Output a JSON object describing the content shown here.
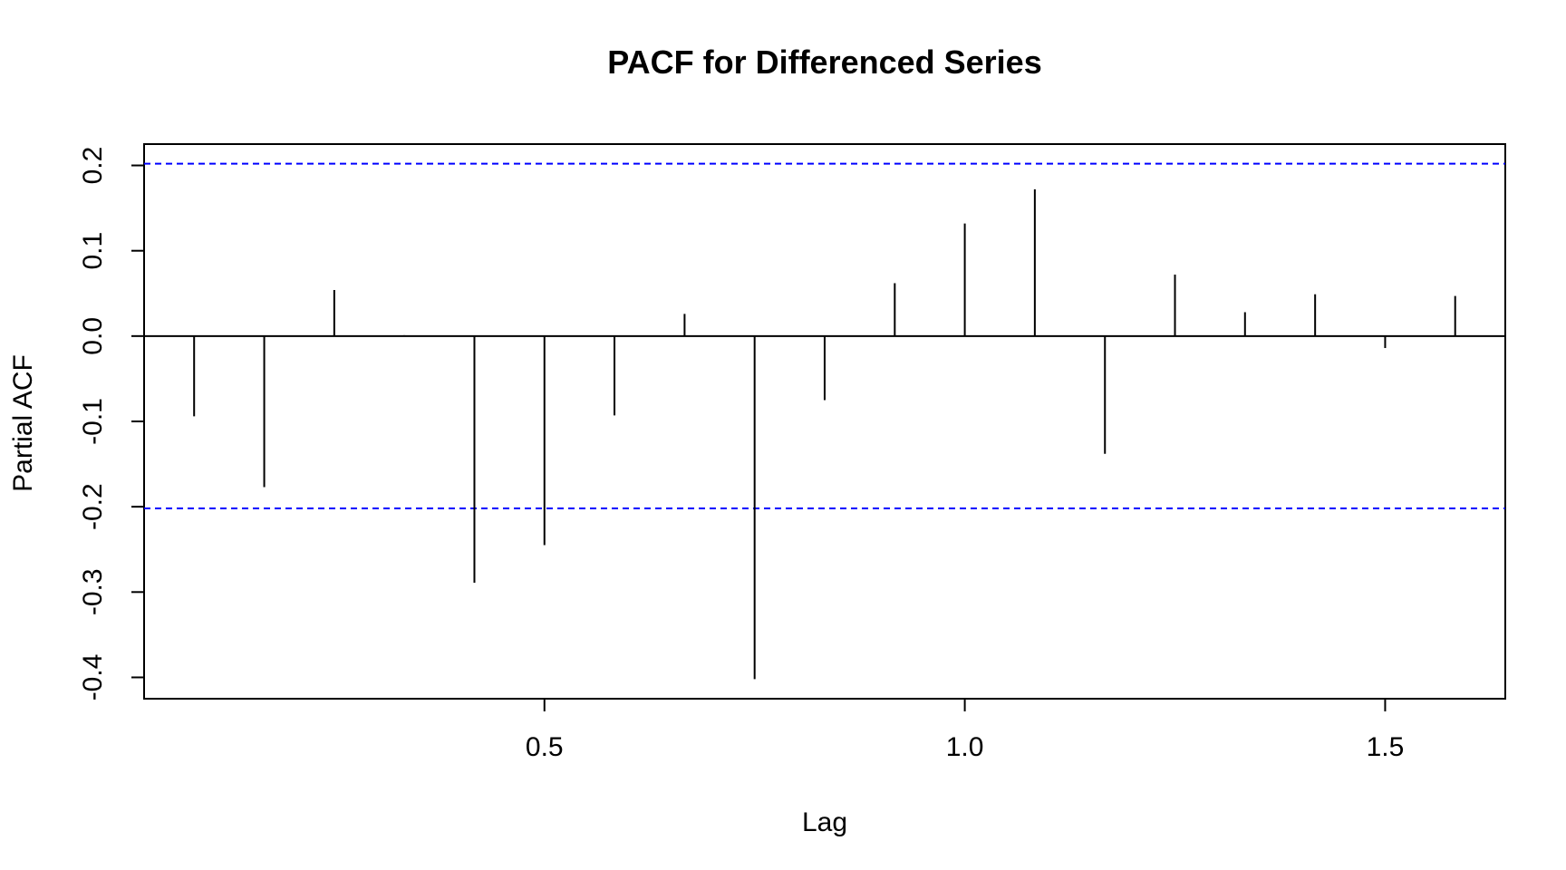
{
  "chart_data": {
    "type": "bar",
    "title": "PACF for Differenced Series",
    "xlabel": "Lag",
    "ylabel": "Partial ACF",
    "xlim": [
      0.0238,
      1.6429
    ],
    "ylim": [
      -0.425,
      0.225
    ],
    "xticks": [
      0.5,
      1.0,
      1.5
    ],
    "xtick_labels": [
      "0.5",
      "1.0",
      "1.5"
    ],
    "yticks": [
      -0.4,
      -0.3,
      -0.2,
      -0.1,
      0.0,
      0.1,
      0.2
    ],
    "ytick_labels": [
      "-0.4",
      "-0.3",
      "-0.2",
      "-0.1",
      "0.0",
      "0.1",
      "0.2"
    ],
    "confidence_bound": 0.202,
    "confidence_line_color": "#0000ff",
    "bar_color": "#000000",
    "grid": false,
    "series": [
      {
        "x": [
          0.0833,
          0.1667,
          0.25,
          0.3333,
          0.4167,
          0.5,
          0.5833,
          0.6667,
          0.75,
          0.8333,
          0.9167,
          1.0,
          1.0833,
          1.1667,
          1.25,
          1.3333,
          1.4167,
          1.5,
          1.5833
        ],
        "values": [
          -0.094,
          -0.177,
          0.054,
          0.001,
          -0.289,
          -0.245,
          -0.093,
          0.026,
          -0.402,
          -0.075,
          0.062,
          0.132,
          0.172,
          -0.138,
          0.072,
          0.028,
          0.049,
          -0.014,
          0.047
        ]
      }
    ]
  }
}
